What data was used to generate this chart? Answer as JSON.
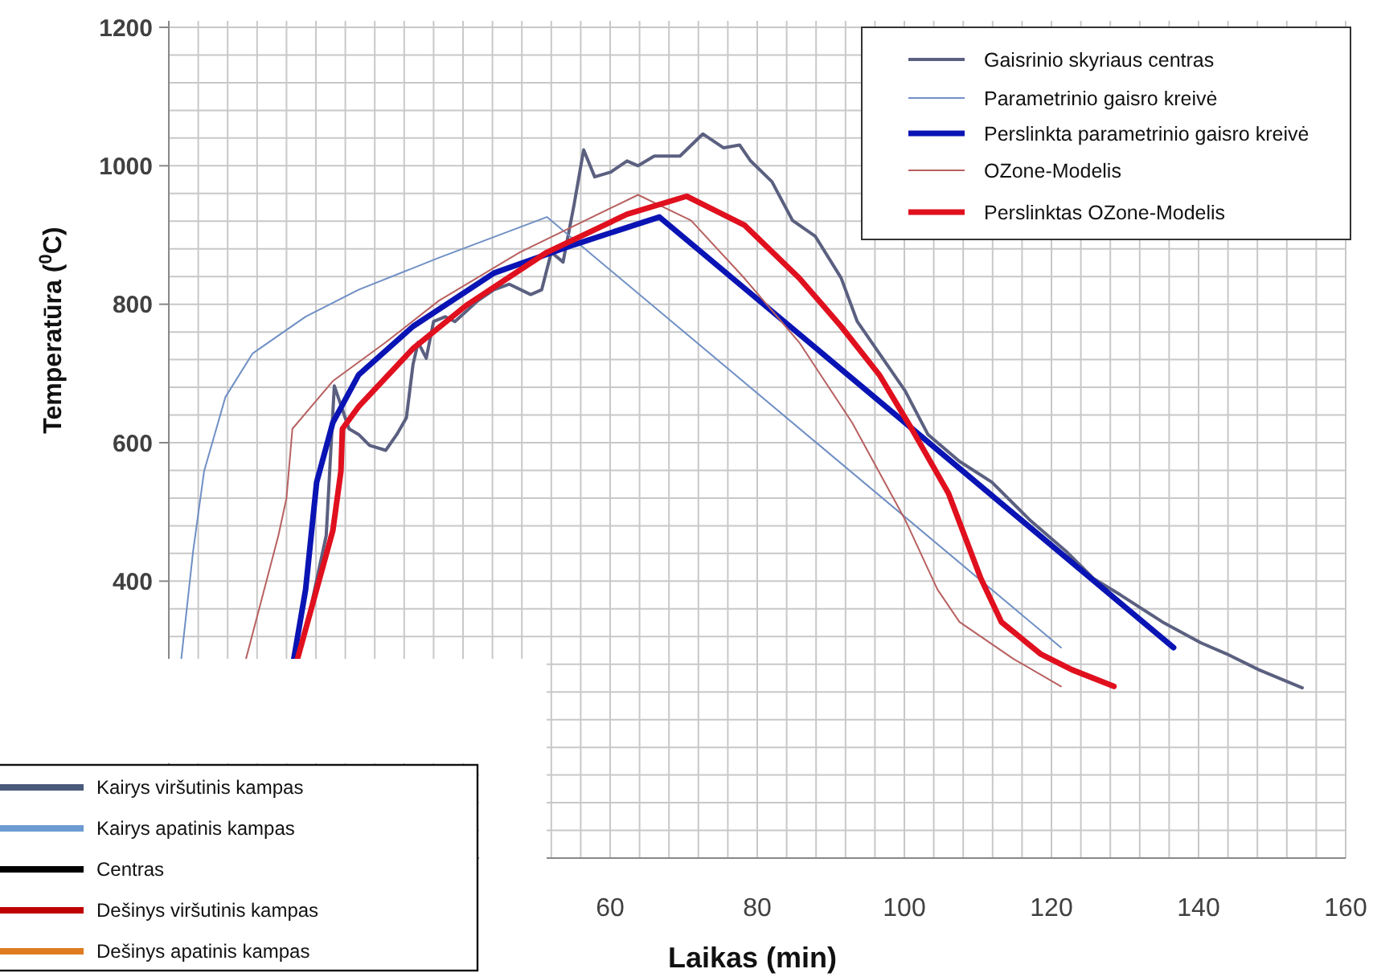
{
  "chart_data": [
    {
      "type": "line",
      "xlabel": "Laikas (min)",
      "ylabel": "Temperatūra ($^{0}$C)",
      "xlim": [
        0,
        160
      ],
      "ylim": [
        0,
        1200
      ],
      "xticks": [
        {
          "value": 0,
          "label": null
        },
        {
          "value": 4,
          "label": null
        },
        {
          "value": 8,
          "label": null
        },
        {
          "value": 12,
          "label": null
        },
        {
          "value": 16,
          "label": null
        },
        {
          "value": 20,
          "label": null
        },
        {
          "value": 24,
          "label": null
        },
        {
          "value": 28,
          "label": null
        },
        {
          "value": 32,
          "label": null
        },
        {
          "value": 36,
          "label": null
        },
        {
          "value": 40,
          "label": null
        },
        {
          "value": 44,
          "label": null
        },
        {
          "value": 48,
          "label": null
        },
        {
          "value": 52,
          "label": null
        },
        {
          "value": 56,
          "label": null
        },
        60,
        {
          "value": 64,
          "label": null
        },
        {
          "value": 68,
          "label": null
        },
        {
          "value": 72,
          "label": null
        },
        {
          "value": 76,
          "label": null
        },
        80,
        {
          "value": 84,
          "label": null
        },
        {
          "value": 88,
          "label": null
        },
        {
          "value": 92,
          "label": null
        },
        {
          "value": 96,
          "label": null
        },
        100,
        {
          "value": 104,
          "label": null
        },
        {
          "value": 108,
          "label": null
        },
        {
          "value": 112,
          "label": null
        },
        {
          "value": 116,
          "label": null
        },
        120,
        {
          "value": 124,
          "label": null
        },
        {
          "value": 128,
          "label": null
        },
        {
          "value": 132,
          "label": null
        },
        {
          "value": 136,
          "label": null
        },
        140,
        {
          "value": 144,
          "label": null
        },
        {
          "value": 148,
          "label": null
        },
        {
          "value": 152,
          "label": null
        },
        {
          "value": 156,
          "label": null
        },
        160
      ],
      "yticks": [
        {
          "value": 0,
          "label": null
        },
        {
          "value": 40,
          "label": null
        },
        {
          "value": 80,
          "label": null
        },
        {
          "value": 120,
          "label": null
        },
        {
          "value": 160,
          "label": null
        },
        {
          "value": 200,
          "label": null
        },
        {
          "value": 240,
          "label": null
        },
        {
          "value": 280,
          "label": null
        },
        {
          "value": 320,
          "label": null
        },
        {
          "value": 360,
          "label": null
        },
        400,
        {
          "value": 440,
          "label": null
        },
        {
          "value": 480,
          "label": null
        },
        {
          "value": 520,
          "label": null
        },
        {
          "value": 560,
          "label": null
        },
        600,
        {
          "value": 640,
          "label": null
        },
        {
          "value": 680,
          "label": null
        },
        {
          "value": 720,
          "label": null
        },
        {
          "value": 760,
          "label": null
        },
        800,
        {
          "value": 840,
          "label": null
        },
        {
          "value": 880,
          "label": null
        },
        {
          "value": 920,
          "label": null
        },
        {
          "value": 960,
          "label": null
        },
        1000,
        {
          "value": 1040,
          "label": null
        },
        {
          "value": 1080,
          "label": null
        },
        {
          "value": 1120,
          "label": null
        },
        {
          "value": 1160,
          "label": null
        },
        1200
      ],
      "grid": true,
      "legend": "top right",
      "marker": "none",
      "line_style": "solid",
      "series": [
        {
          "name": "Gaisrinio skyriaus centras",
          "color": "#5b6080",
          "x": [
            18.6,
            21.4,
            22.5,
            24.5,
            25.8,
            27.3,
            29.5,
            31,
            32.3,
            33.2,
            33.9,
            35,
            36,
            37.6,
            38.9,
            42,
            44.2,
            46.3,
            49.2,
            50.7,
            52,
            53.6,
            55.1,
            56.4,
            57.9,
            60.1,
            62.3,
            63.8,
            66,
            69.5,
            72.6,
            75.4,
            77.6,
            79.1,
            82,
            84.8,
            87.9,
            91.4,
            93.6,
            96.6,
            100.1,
            103.2,
            107.5,
            111.9,
            117,
            122,
            125.7,
            129.4,
            135.1,
            140.3,
            143.8,
            148.2,
            154.1
          ],
          "values": [
            327,
            466,
            682,
            620,
            612,
            596,
            589,
            612,
            636,
            713,
            745,
            722,
            775,
            782,
            775,
            805,
            821,
            829,
            814,
            821,
            875,
            861,
            944,
            1023,
            984,
            991,
            1007,
            1000,
            1014,
            1014,
            1046,
            1026,
            1030,
            1007,
            977,
            921,
            898,
            838,
            775,
            729,
            675,
            612,
            573,
            543,
            489,
            443,
            404,
            380,
            341,
            311,
            295,
            272,
            246
          ]
        },
        {
          "name": "Parametrinio gaisro kreivė",
          "color": "#6f8fc4",
          "x": [
            1.7,
            3.3,
            4.8,
            7.7,
            11.4,
            18.6,
            25.8,
            36.7,
            51.4,
            121.3
          ],
          "values": [
            288,
            443,
            559,
            666,
            729,
            782,
            821,
            867,
            926,
            304
          ]
        },
        {
          "name": "Perslinkta parametrinio gaisro kreivė",
          "color": "#0a14b4",
          "x": [
            17,
            18.6,
            20.1,
            22.3,
            25.8,
            33.2,
            44.2,
            55.1,
            66.7,
            136.6
          ],
          "values": [
            288,
            388,
            543,
            629,
            698,
            768,
            845,
            886,
            926,
            304
          ]
        },
        {
          "name": "OZone-Modelis",
          "color": "#b86060",
          "x": [
            10.5,
            14.9,
            16,
            16.8,
            22.3,
            29.5,
            36.7,
            47.7,
            63.8,
            71,
            78.3,
            85.7,
            92.9,
            100.1,
            104.5,
            107.5,
            114.8,
            121.3
          ],
          "values": [
            288,
            466,
            520,
            620,
            689,
            745,
            805,
            875,
            958,
            921,
            837,
            745,
            629,
            489,
            388,
            341,
            288,
            248
          ]
        },
        {
          "name": "Perslinktas OZone-Modelis",
          "color": "#e0101e",
          "x": [
            17.5,
            22.3,
            23.4,
            23.6,
            25.8,
            33.2,
            40.4,
            51.4,
            62.3,
            70.4,
            78.3,
            85.7,
            91.4,
            96.6,
            101,
            106,
            110.4,
            113.2,
            118.5,
            122.8,
            128.5
          ],
          "values": [
            288,
            473,
            559,
            620,
            652,
            736,
            798,
            875,
            930,
            956,
            914,
            838,
            768,
            698,
            620,
            527,
            404,
            341,
            295,
            272,
            248
          ]
        }
      ]
    },
    {
      "type": "other",
      "legend": "bottom left",
      "series": [
        {
          "name": "Kairys viršutinis kampas",
          "color": "#4a5a7a"
        },
        {
          "name": "Kairys apatinis kampas",
          "color": "#6c9cd2"
        },
        {
          "name": "Centras",
          "color": "#000000"
        },
        {
          "name": "Dešinys viršutinis kampas",
          "color": "#c00000"
        },
        {
          "name": "Dešinys apatinis kampas",
          "color": "#e07b20"
        }
      ]
    }
  ]
}
